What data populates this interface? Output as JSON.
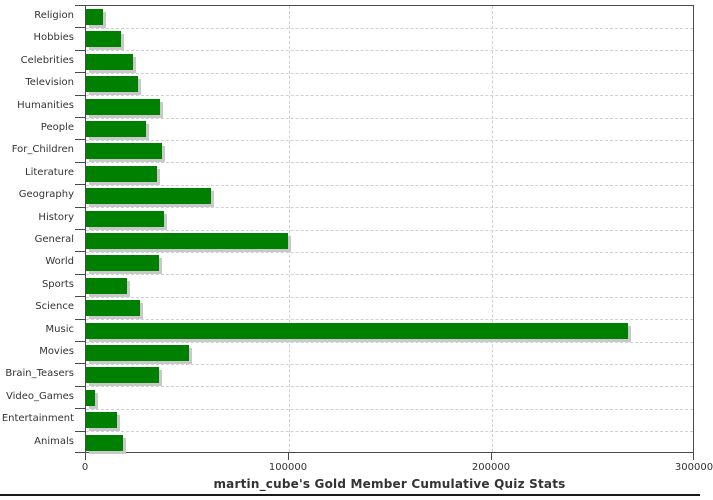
{
  "page": {
    "background": "#ffffff"
  },
  "chart_data": {
    "type": "bar",
    "orientation": "horizontal",
    "title": "martin_cube's Gold Member Cumulative Quiz Stats",
    "categories": [
      "Religion",
      "Hobbies",
      "Celebrities",
      "Television",
      "Humanities",
      "People",
      "For_Children",
      "Literature",
      "Geography",
      "History",
      "General",
      "World",
      "Sports",
      "Science",
      "Music",
      "Movies",
      "Brain_Teasers",
      "Video_Games",
      "Entertainment",
      "Animals"
    ],
    "values": [
      8500,
      17200,
      23000,
      25600,
      36300,
      29400,
      37500,
      35200,
      61500,
      38300,
      99400,
      36100,
      20300,
      26600,
      267000,
      50700,
      35900,
      4400,
      15300,
      18300
    ],
    "xlabel": "",
    "ylabel": "",
    "xlim": [
      0,
      300000
    ],
    "x_ticks": [
      {
        "value": 0,
        "label": "0"
      },
      {
        "value": 100000,
        "label": "100000"
      },
      {
        "value": 200000,
        "label": "200000"
      },
      {
        "value": 300000,
        "label": "300000"
      }
    ],
    "grid": "dashed",
    "legend_position": "none",
    "bar_color": "#008000",
    "bar_shadow_color": "#c9c9c9",
    "gridline_color": "#cbd1d4",
    "axis_color": "#4a4a4a",
    "label_color": "#333333"
  }
}
